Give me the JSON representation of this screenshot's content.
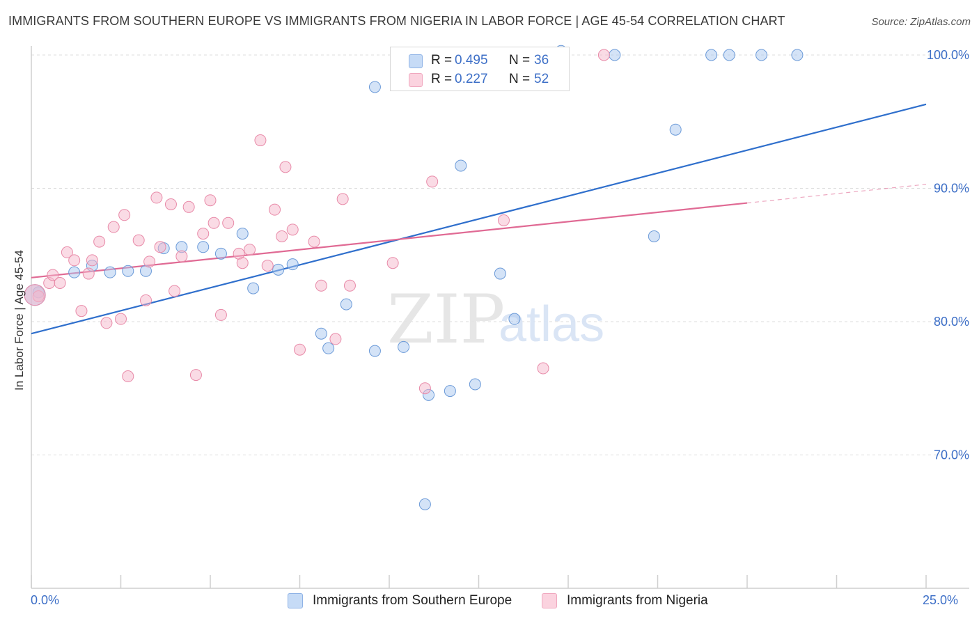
{
  "title": "IMMIGRANTS FROM SOUTHERN EUROPE VS IMMIGRANTS FROM NIGERIA IN LABOR FORCE | AGE 45-54 CORRELATION CHART",
  "source": "Source: ZipAtlas.com",
  "watermark": {
    "zip": "ZIP",
    "atlas": "atlas"
  },
  "legend_stats": [
    {
      "r_label": "R =",
      "r_value": "0.495",
      "n_label": "N =",
      "n_value": "36",
      "color": "#a9c8ef"
    },
    {
      "r_label": "R =",
      "r_value": "0.227",
      "n_label": "N =",
      "n_value": "52",
      "color": "#f6b8cb"
    }
  ],
  "chart_data": {
    "type": "scatter",
    "ylabel": "In Labor Force | Age 45-54",
    "xlabel": "",
    "xlim": [
      0,
      25
    ],
    "ylim": [
      60,
      100
    ],
    "x_tick_labels": [
      {
        "x": 0,
        "label": "0.0%"
      },
      {
        "x": 25,
        "label": "25.0%"
      }
    ],
    "y_ticks": [
      {
        "y": 70,
        "label": "70.0%"
      },
      {
        "y": 80,
        "label": "80.0%"
      },
      {
        "y": 90,
        "label": "90.0%"
      },
      {
        "y": 100,
        "label": "100.0%"
      }
    ],
    "grid": "horizontal dashed",
    "legend_position": "bottom-center",
    "series": [
      {
        "name": "Immigrants from Southern Europe",
        "color": "#a9c8ef",
        "stroke": "#6b9ad8",
        "trend_color": "#2f6fcc",
        "trend": {
          "x0": 0,
          "y0": 79.1,
          "x1": 25,
          "y1": 96.3
        },
        "points": [
          [
            0.2,
            82.2
          ],
          [
            1.2,
            83.7
          ],
          [
            1.7,
            84.2
          ],
          [
            2.2,
            83.7
          ],
          [
            2.7,
            83.8
          ],
          [
            3.2,
            83.8
          ],
          [
            3.7,
            85.5
          ],
          [
            4.2,
            85.6
          ],
          [
            4.8,
            85.6
          ],
          [
            5.3,
            85.1
          ],
          [
            5.9,
            86.6
          ],
          [
            6.2,
            82.5
          ],
          [
            6.9,
            83.9
          ],
          [
            7.3,
            84.3
          ],
          [
            8.1,
            79.1
          ],
          [
            8.3,
            78.0
          ],
          [
            8.8,
            81.3
          ],
          [
            9.6,
            97.6
          ],
          [
            9.6,
            77.8
          ],
          [
            10.4,
            78.1
          ],
          [
            11.0,
            66.3
          ],
          [
            11.1,
            74.5
          ],
          [
            11.7,
            74.8
          ],
          [
            12.0,
            91.7
          ],
          [
            12.4,
            75.3
          ],
          [
            13.1,
            83.6
          ],
          [
            13.5,
            80.2
          ],
          [
            14.8,
            100.3
          ],
          [
            16.3,
            100.0
          ],
          [
            17.4,
            86.4
          ],
          [
            18.0,
            94.4
          ],
          [
            19.0,
            100.0
          ],
          [
            19.5,
            100.0
          ],
          [
            20.4,
            100.0
          ],
          [
            21.4,
            100.0
          ],
          [
            0.1,
            82.0
          ]
        ]
      },
      {
        "name": "Immigrants from Nigeria",
        "color": "#f6b8cb",
        "stroke": "#e88aa8",
        "trend_color": "#e06a94",
        "trend": {
          "x0": 0,
          "y0": 83.3,
          "x1": 20,
          "y1": 88.9
        },
        "trend_dashed_to": {
          "x": 25,
          "y": 90.3
        },
        "points": [
          [
            0.2,
            81.9
          ],
          [
            0.5,
            82.9
          ],
          [
            0.6,
            83.5
          ],
          [
            0.8,
            82.9
          ],
          [
            1.0,
            85.2
          ],
          [
            1.2,
            84.6
          ],
          [
            1.4,
            80.8
          ],
          [
            1.6,
            83.6
          ],
          [
            1.7,
            84.6
          ],
          [
            1.9,
            86.0
          ],
          [
            2.1,
            79.9
          ],
          [
            2.3,
            87.1
          ],
          [
            2.5,
            80.2
          ],
          [
            2.6,
            88.0
          ],
          [
            2.7,
            75.9
          ],
          [
            3.0,
            86.1
          ],
          [
            3.2,
            81.6
          ],
          [
            3.3,
            84.5
          ],
          [
            3.5,
            89.3
          ],
          [
            3.6,
            85.6
          ],
          [
            3.9,
            88.8
          ],
          [
            4.0,
            82.3
          ],
          [
            4.2,
            84.9
          ],
          [
            4.4,
            88.6
          ],
          [
            4.6,
            76.0
          ],
          [
            4.8,
            86.6
          ],
          [
            5.0,
            89.1
          ],
          [
            5.1,
            87.4
          ],
          [
            5.3,
            80.5
          ],
          [
            5.5,
            87.4
          ],
          [
            5.8,
            85.1
          ],
          [
            5.9,
            84.4
          ],
          [
            6.1,
            85.4
          ],
          [
            6.4,
            93.6
          ],
          [
            6.6,
            84.2
          ],
          [
            6.8,
            88.4
          ],
          [
            7.0,
            86.4
          ],
          [
            7.1,
            91.6
          ],
          [
            7.3,
            86.9
          ],
          [
            7.5,
            77.9
          ],
          [
            7.9,
            86.0
          ],
          [
            8.1,
            82.7
          ],
          [
            8.5,
            78.7
          ],
          [
            8.7,
            89.2
          ],
          [
            8.9,
            82.7
          ],
          [
            10.1,
            84.4
          ],
          [
            11.0,
            75.0
          ],
          [
            11.2,
            90.5
          ],
          [
            13.2,
            87.6
          ],
          [
            14.3,
            76.5
          ],
          [
            16.0,
            100.0
          ],
          [
            0.1,
            82.0
          ]
        ]
      }
    ]
  }
}
